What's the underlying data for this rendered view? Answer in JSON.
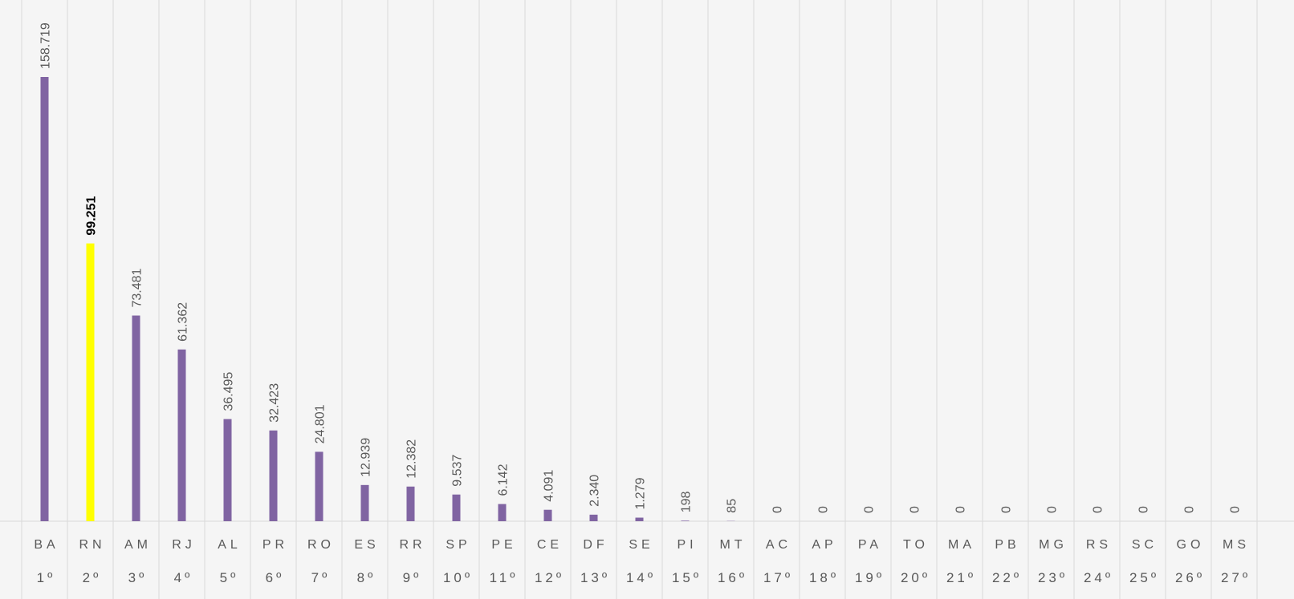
{
  "chart_data": {
    "type": "bar",
    "title": "",
    "xlabel": "",
    "ylabel": "",
    "categories": [
      "BA",
      "RN",
      "AM",
      "RJ",
      "AL",
      "PR",
      "RO",
      "ES",
      "RR",
      "SP",
      "PE",
      "CE",
      "DF",
      "SE",
      "PI",
      "MT",
      "AC",
      "AP",
      "PA",
      "TO",
      "MA",
      "PB",
      "MG",
      "RS",
      "SC",
      "GO",
      "MS"
    ],
    "ranks": [
      "1º",
      "2º",
      "3º",
      "4º",
      "5º",
      "6º",
      "7º",
      "8º",
      "9º",
      "10º",
      "11º",
      "12º",
      "13º",
      "14º",
      "15º",
      "16º",
      "17º",
      "18º",
      "19º",
      "20º",
      "21º",
      "22º",
      "23º",
      "24º",
      "25º",
      "26º",
      "27º"
    ],
    "values": [
      158719,
      99251,
      73481,
      61362,
      36495,
      32423,
      24801,
      12939,
      12382,
      9537,
      6142,
      4091,
      2340,
      1279,
      198,
      85,
      0,
      0,
      0,
      0,
      0,
      0,
      0,
      0,
      0,
      0,
      0
    ],
    "value_labels": [
      "158.719",
      "99.251",
      "73.481",
      "61.362",
      "36.495",
      "32.423",
      "24.801",
      "12.939",
      "12.382",
      "9.537",
      "6.142",
      "4.091",
      "2.340",
      "1.279",
      "198",
      "85",
      "0",
      "0",
      "0",
      "0",
      "0",
      "0",
      "0",
      "0",
      "0",
      "0",
      "0"
    ],
    "highlight_category": "RN",
    "ylim": [
      0,
      158719
    ],
    "grid": "vertical category separators",
    "colors": {
      "bar": "#8064a2",
      "highlight_bar": "#ffff00",
      "background": "#f5f5f5",
      "grid": "#d9d9d9",
      "text": "#595959",
      "highlight_text": "#000000"
    }
  }
}
